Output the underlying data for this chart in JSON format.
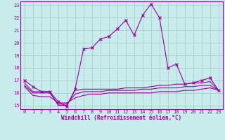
{
  "xlabel": "Windchill (Refroidissement éolien,°C)",
  "background_color": "#c8ecec",
  "grid_color": "#a0c8c8",
  "line_color": "#990099",
  "xlim": [
    -0.5,
    23.5
  ],
  "ylim": [
    14.7,
    23.3
  ],
  "xticks": [
    0,
    1,
    2,
    3,
    4,
    5,
    6,
    7,
    8,
    9,
    10,
    11,
    12,
    13,
    14,
    15,
    16,
    17,
    18,
    19,
    20,
    21,
    22,
    23
  ],
  "yticks": [
    15,
    16,
    17,
    18,
    19,
    20,
    21,
    22,
    23
  ],
  "series1_x": [
    0,
    1,
    2,
    3,
    4,
    5,
    6,
    7,
    8,
    9,
    10,
    11,
    12,
    13,
    14,
    15,
    16,
    17,
    18,
    19,
    20,
    21,
    22,
    23
  ],
  "series1_y": [
    17.0,
    16.5,
    16.1,
    16.1,
    15.3,
    14.9,
    16.3,
    19.5,
    19.6,
    20.3,
    20.5,
    21.1,
    21.8,
    20.6,
    22.2,
    23.1,
    22.0,
    18.0,
    18.3,
    16.7,
    16.8,
    17.0,
    17.2,
    16.2
  ],
  "series2_y": [
    16.8,
    16.1,
    16.1,
    16.1,
    15.0,
    15.0,
    16.2,
    16.3,
    16.3,
    16.3,
    16.3,
    16.3,
    16.4,
    16.4,
    16.4,
    16.5,
    16.6,
    16.6,
    16.7,
    16.7,
    16.8,
    16.8,
    16.9,
    16.2
  ],
  "series3_y": [
    16.5,
    15.8,
    15.7,
    15.7,
    15.2,
    15.2,
    15.6,
    15.8,
    15.9,
    15.9,
    16.0,
    16.0,
    16.0,
    16.0,
    16.0,
    16.0,
    16.1,
    16.1,
    16.1,
    16.2,
    16.2,
    16.3,
    16.4,
    16.2
  ],
  "series4_y": [
    16.6,
    16.0,
    16.0,
    16.0,
    15.1,
    15.1,
    15.9,
    16.1,
    16.1,
    16.1,
    16.2,
    16.2,
    16.2,
    16.2,
    16.3,
    16.3,
    16.4,
    16.4,
    16.4,
    16.5,
    16.5,
    16.6,
    16.6,
    16.2
  ],
  "tick_fontsize": 5,
  "xlabel_fontsize": 5.5,
  "linewidth": 0.8,
  "marker_size": 2.5
}
